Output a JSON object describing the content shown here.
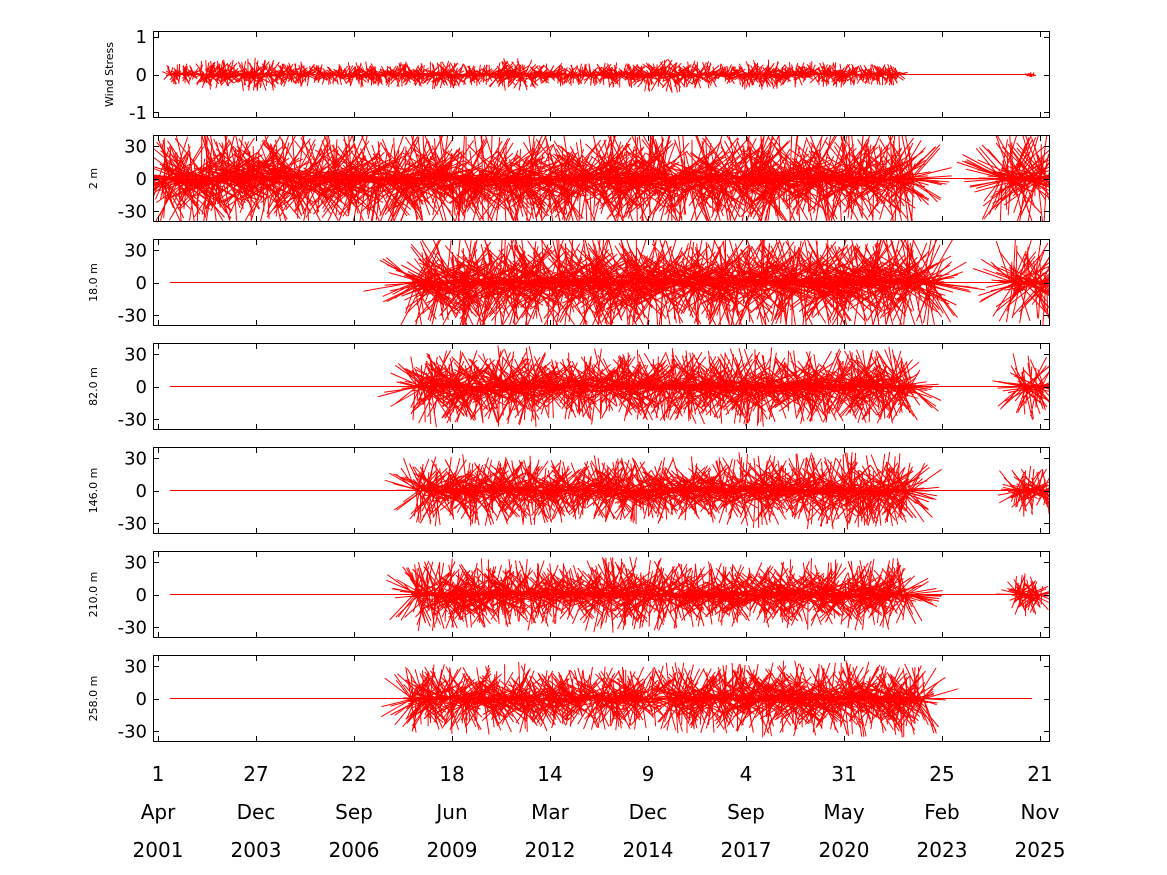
{
  "chart_data": [
    {
      "type": "line",
      "ylabel": "Wind Stress",
      "xlim": [
        "2001-02-09",
        "2026-03-03"
      ],
      "ylim": [
        -1.15,
        1.15
      ],
      "yticks": [
        1,
        0,
        -1
      ],
      "grid": false,
      "color": "#ff0000",
      "baseline": {
        "start": "2001-07-12",
        "end": "2025-09-21"
      },
      "segments": [
        {
          "start": "2001-07-12",
          "end": "2002-04-14",
          "max": 0.3
        },
        {
          "start": "2002-06-04",
          "end": "2003-05-27",
          "max": 0.4
        },
        {
          "start": "2003-06-26",
          "end": "2004-06-07",
          "max": 0.45
        },
        {
          "start": "2004-07-18",
          "end": "2005-07-20",
          "max": 0.35
        },
        {
          "start": "2005-08-30",
          "end": "2006-06-22",
          "max": 0.3
        },
        {
          "start": "2006-07-23",
          "end": "2007-08-25",
          "max": 0.35
        },
        {
          "start": "2007-09-24",
          "end": "2008-09-15",
          "max": 0.35
        },
        {
          "start": "2008-10-16",
          "end": "2009-09-08",
          "max": 0.4
        },
        {
          "start": "2009-10-08",
          "end": "2010-07-31",
          "max": 0.3
        },
        {
          "start": "2010-09-10",
          "end": "2011-08-23",
          "max": 0.45
        },
        {
          "start": "2011-09-23",
          "end": "2012-07-14",
          "max": 0.35
        },
        {
          "start": "2012-08-14",
          "end": "2013-07-17",
          "max": 0.3
        },
        {
          "start": "2013-08-06",
          "end": "2014-08-29",
          "max": 0.35
        },
        {
          "start": "2014-09-29",
          "end": "2015-11-01",
          "max": 0.5
        },
        {
          "start": "2015-12-01",
          "end": "2016-09-22",
          "max": 0.4
        },
        {
          "start": "2016-10-23",
          "end": "2017-07-05",
          "max": 0.3
        },
        {
          "start": "2017-08-04",
          "end": "2018-07-28",
          "max": 0.4
        },
        {
          "start": "2018-08-27",
          "end": "2019-08-09",
          "max": 0.35
        },
        {
          "start": "2019-09-09",
          "end": "2020-10-21",
          "max": 0.35
        },
        {
          "start": "2020-11-20",
          "end": "2021-12-23",
          "max": 0.3
        },
        {
          "start": "2025-07-11",
          "end": "2025-09-21",
          "max": 0.08
        }
      ]
    },
    {
      "type": "line",
      "ylabel": "2 m",
      "xlim": [
        "2001-02-09",
        "2026-03-03"
      ],
      "ylim": [
        -40,
        40
      ],
      "yticks": [
        30,
        0,
        -30
      ],
      "grid": false,
      "color": "#ff0000",
      "baseline": {
        "start": "2001-04-01",
        "end": "2026-02-11"
      },
      "segments": [
        {
          "start": "2001-04-01",
          "end": "2022-05-25",
          "max": 48
        },
        {
          "start": "2024-10-09",
          "end": "2026-02-11",
          "max": 48
        }
      ]
    },
    {
      "type": "line",
      "ylabel": "18.0 m",
      "xlim": [
        "2001-02-09",
        "2026-03-03"
      ],
      "ylim": [
        -40,
        40
      ],
      "yticks": [
        30,
        0,
        -30
      ],
      "grid": false,
      "color": "#ff0000",
      "baseline": {
        "start": "2001-08-01",
        "end": "2026-02-11"
      },
      "segments": [
        {
          "start": "2008-05-06",
          "end": "2022-12-16",
          "max": 48
        },
        {
          "start": "2025-01-19",
          "end": "2026-02-11",
          "max": 42
        }
      ]
    },
    {
      "type": "line",
      "ylabel": "82.0 m",
      "xlim": [
        "2001-02-09",
        "2026-03-03"
      ],
      "ylim": [
        -40,
        40
      ],
      "yticks": [
        30,
        0,
        -30
      ],
      "grid": false,
      "color": "#ff0000",
      "baseline": {
        "start": "2001-08-01",
        "end": "2026-01-11"
      },
      "segments": [
        {
          "start": "2008-06-05",
          "end": "2011-12-03",
          "max": 38
        },
        {
          "start": "2011-12-23",
          "end": "2013-04-26",
          "max": 32
        },
        {
          "start": "2013-05-27",
          "end": "2015-09-11",
          "max": 36
        },
        {
          "start": "2015-10-01",
          "end": "2017-05-15",
          "max": 38
        },
        {
          "start": "2017-06-04",
          "end": "2022-04-25",
          "max": 38
        },
        {
          "start": "2025-05-01",
          "end": "2026-01-11",
          "max": 32
        }
      ]
    },
    {
      "type": "line",
      "ylabel": "146.0 m",
      "xlim": [
        "2001-02-09",
        "2026-03-03"
      ],
      "ylim": [
        -40,
        40
      ],
      "yticks": [
        30,
        0,
        -30
      ],
      "grid": false,
      "color": "#ff0000",
      "baseline": {
        "start": "2001-08-01",
        "end": "2026-02-11"
      },
      "segments": [
        {
          "start": "2008-06-05",
          "end": "2011-12-03",
          "max": 34
        },
        {
          "start": "2011-12-23",
          "end": "2013-04-26",
          "max": 30
        },
        {
          "start": "2013-05-27",
          "end": "2015-09-11",
          "max": 33
        },
        {
          "start": "2015-10-01",
          "end": "2017-05-15",
          "max": 32
        },
        {
          "start": "2017-06-04",
          "end": "2022-04-25",
          "max": 36
        },
        {
          "start": "2025-03-11",
          "end": "2026-02-11",
          "max": 24
        }
      ]
    },
    {
      "type": "line",
      "ylabel": "210.0 m",
      "xlim": [
        "2001-02-09",
        "2026-03-03"
      ],
      "ylim": [
        -40,
        40
      ],
      "yticks": [
        30,
        0,
        -30
      ],
      "grid": false,
      "color": "#ff0000",
      "baseline": {
        "start": "2001-08-01",
        "end": "2025-12-11"
      },
      "segments": [
        {
          "start": "2008-05-16",
          "end": "2011-12-03",
          "max": 34
        },
        {
          "start": "2011-12-23",
          "end": "2013-04-26",
          "max": 30
        },
        {
          "start": "2013-05-27",
          "end": "2015-09-11",
          "max": 36
        },
        {
          "start": "2015-10-01",
          "end": "2017-05-15",
          "max": 32
        },
        {
          "start": "2017-06-04",
          "end": "2022-04-04",
          "max": 34
        },
        {
          "start": "2025-03-11",
          "end": "2025-12-11",
          "max": 20
        }
      ]
    },
    {
      "type": "line",
      "ylabel": "258.0 m",
      "xlim": [
        "2001-02-09",
        "2026-03-03"
      ],
      "ylim": [
        -40,
        40
      ],
      "yticks": [
        30,
        0,
        -30
      ],
      "grid": false,
      "color": "#ff0000",
      "baseline": {
        "start": "2001-08-01",
        "end": "2025-08-31"
      },
      "segments": [
        {
          "start": "2008-04-15",
          "end": "2011-12-03",
          "max": 34
        },
        {
          "start": "2011-12-23",
          "end": "2013-04-26",
          "max": 30
        },
        {
          "start": "2013-05-27",
          "end": "2015-02-18",
          "max": 32
        },
        {
          "start": "2015-06-21",
          "end": "2017-05-15",
          "max": 34
        },
        {
          "start": "2017-06-04",
          "end": "2022-09-05",
          "max": 36
        }
      ],
      "xticks": [
        {
          "day": "1",
          "month": "Apr",
          "year": "2001"
        },
        {
          "day": "27",
          "month": "Dec",
          "year": "2003"
        },
        {
          "day": "22",
          "month": "Sep",
          "year": "2006"
        },
        {
          "day": "18",
          "month": "Jun",
          "year": "2009"
        },
        {
          "day": "14",
          "month": "Mar",
          "year": "2012"
        },
        {
          "day": "9",
          "month": "Dec",
          "year": "2014"
        },
        {
          "day": "4",
          "month": "Sep",
          "year": "2017"
        },
        {
          "day": "31",
          "month": "May",
          "year": "2020"
        },
        {
          "day": "25",
          "month": "Feb",
          "year": "2023"
        },
        {
          "day": "21",
          "month": "Nov",
          "year": "2025"
        }
      ]
    }
  ]
}
